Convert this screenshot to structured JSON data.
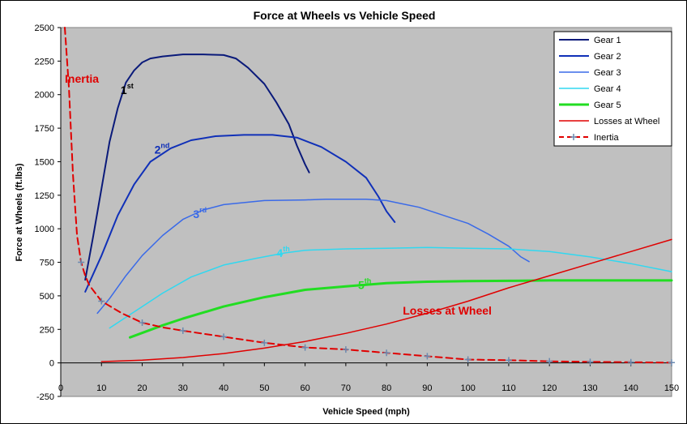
{
  "chart_data": {
    "type": "line",
    "title": "Force at Wheels vs Vehicle Speed",
    "xlabel": "Vehicle Speed (mph)",
    "ylabel": "Force at Wheels (ft.lbs)",
    "xlim": [
      0,
      150
    ],
    "ylim": [
      -250,
      2500
    ],
    "xticks": [
      0,
      10,
      20,
      30,
      40,
      50,
      60,
      70,
      80,
      90,
      100,
      110,
      120,
      130,
      140,
      150
    ],
    "yticks": [
      -250,
      0,
      250,
      500,
      750,
      1000,
      1250,
      1500,
      1750,
      2000,
      2250,
      2500
    ],
    "grid": false,
    "legend_position": "top-right",
    "series": [
      {
        "name": "Gear 1",
        "color": "#0a1a7a",
        "width": 2,
        "dash": "",
        "points": [
          [
            6,
            620
          ],
          [
            8,
            950
          ],
          [
            10,
            1300
          ],
          [
            12,
            1650
          ],
          [
            14,
            1900
          ],
          [
            16,
            2090
          ],
          [
            18,
            2180
          ],
          [
            20,
            2240
          ],
          [
            22,
            2270
          ],
          [
            25,
            2285
          ],
          [
            30,
            2300
          ],
          [
            35,
            2300
          ],
          [
            40,
            2295
          ],
          [
            43,
            2270
          ],
          [
            46,
            2200
          ],
          [
            50,
            2080
          ],
          [
            53,
            1940
          ],
          [
            56,
            1780
          ],
          [
            58,
            1620
          ],
          [
            60,
            1480
          ],
          [
            61,
            1420
          ]
        ]
      },
      {
        "name": "Gear 2",
        "color": "#1030b8",
        "width": 2,
        "dash": "",
        "points": [
          [
            6,
            530
          ],
          [
            10,
            800
          ],
          [
            14,
            1100
          ],
          [
            18,
            1330
          ],
          [
            22,
            1500
          ],
          [
            27,
            1600
          ],
          [
            32,
            1660
          ],
          [
            38,
            1690
          ],
          [
            45,
            1700
          ],
          [
            52,
            1700
          ],
          [
            58,
            1680
          ],
          [
            64,
            1610
          ],
          [
            70,
            1500
          ],
          [
            75,
            1380
          ],
          [
            78,
            1240
          ],
          [
            80,
            1130
          ],
          [
            82,
            1050
          ]
        ]
      },
      {
        "name": "Gear 3",
        "color": "#3a6ae8",
        "width": 1.5,
        "dash": "",
        "points": [
          [
            9,
            370
          ],
          [
            12,
            480
          ],
          [
            16,
            650
          ],
          [
            20,
            800
          ],
          [
            25,
            950
          ],
          [
            30,
            1070
          ],
          [
            35,
            1140
          ],
          [
            40,
            1180
          ],
          [
            50,
            1210
          ],
          [
            60,
            1215
          ],
          [
            65,
            1220
          ],
          [
            75,
            1220
          ],
          [
            80,
            1210
          ],
          [
            88,
            1160
          ],
          [
            95,
            1090
          ],
          [
            100,
            1040
          ],
          [
            105,
            960
          ],
          [
            110,
            870
          ],
          [
            113,
            790
          ],
          [
            115,
            755
          ]
        ]
      },
      {
        "name": "Gear 4",
        "color": "#30d8f0",
        "width": 1.5,
        "dash": "",
        "points": [
          [
            12,
            260
          ],
          [
            18,
            380
          ],
          [
            25,
            520
          ],
          [
            32,
            640
          ],
          [
            40,
            730
          ],
          [
            48,
            780
          ],
          [
            55,
            820
          ],
          [
            60,
            840
          ],
          [
            70,
            850
          ],
          [
            80,
            855
          ],
          [
            90,
            860
          ],
          [
            100,
            855
          ],
          [
            110,
            850
          ],
          [
            120,
            830
          ],
          [
            130,
            790
          ],
          [
            140,
            740
          ],
          [
            150,
            680
          ]
        ]
      },
      {
        "name": "Gear 5",
        "color": "#22dd22",
        "width": 3,
        "dash": "",
        "points": [
          [
            17,
            190
          ],
          [
            25,
            280
          ],
          [
            30,
            330
          ],
          [
            40,
            420
          ],
          [
            50,
            490
          ],
          [
            60,
            545
          ],
          [
            70,
            570
          ],
          [
            80,
            595
          ],
          [
            90,
            605
          ],
          [
            100,
            610
          ],
          [
            110,
            612
          ],
          [
            120,
            615
          ],
          [
            130,
            615
          ],
          [
            140,
            615
          ],
          [
            150,
            615
          ]
        ]
      },
      {
        "name": "Losses at Wheel",
        "color": "#e00000",
        "width": 1.5,
        "dash": "",
        "points": [
          [
            10,
            10
          ],
          [
            20,
            20
          ],
          [
            30,
            40
          ],
          [
            40,
            70
          ],
          [
            50,
            110
          ],
          [
            60,
            160
          ],
          [
            70,
            220
          ],
          [
            80,
            290
          ],
          [
            90,
            370
          ],
          [
            100,
            460
          ],
          [
            110,
            560
          ],
          [
            120,
            650
          ],
          [
            130,
            740
          ],
          [
            140,
            830
          ],
          [
            150,
            920
          ]
        ]
      },
      {
        "name": "Inertia",
        "color": "#e00000",
        "width": 2,
        "dash": "8,5",
        "markers": "plus",
        "points": [
          [
            1,
            2500
          ],
          [
            2,
            2050
          ],
          [
            3,
            1400
          ],
          [
            4,
            950
          ],
          [
            5,
            750
          ],
          [
            6,
            650
          ],
          [
            7,
            580
          ],
          [
            8,
            540
          ],
          [
            10,
            460
          ],
          [
            15,
            370
          ],
          [
            20,
            300
          ],
          [
            25,
            265
          ],
          [
            30,
            240
          ],
          [
            40,
            195
          ],
          [
            50,
            150
          ],
          [
            60,
            115
          ],
          [
            70,
            100
          ],
          [
            80,
            75
          ],
          [
            90,
            50
          ],
          [
            100,
            25
          ],
          [
            110,
            20
          ],
          [
            120,
            12
          ],
          [
            130,
            8
          ],
          [
            140,
            5
          ],
          [
            150,
            2
          ]
        ],
        "marker_x": [
          5,
          10,
          20,
          30,
          40,
          50,
          60,
          70,
          80,
          90,
          100,
          110,
          120,
          130,
          140,
          150
        ]
      }
    ],
    "annotations": [
      {
        "main": "1",
        "sup": "st",
        "color": "#000000",
        "x": 14.7,
        "y": 2005
      },
      {
        "main": "2",
        "sup": "nd",
        "color": "#1030b8",
        "x": 23,
        "y": 1560
      },
      {
        "main": "3",
        "sup": "rd",
        "color": "#3a6ae8",
        "x": 32.5,
        "y": 1080
      },
      {
        "main": "4",
        "sup": "th",
        "color": "#30d8f0",
        "x": 53,
        "y": 790
      },
      {
        "main": "5",
        "sup": "th",
        "color": "#22dd22",
        "x": 73,
        "y": 550
      },
      {
        "main": "Losses at Wheel",
        "sup": "",
        "color": "#e00000",
        "x": 84,
        "y": 360,
        "small": true
      },
      {
        "main": "Inertia",
        "sup": "",
        "color": "#e00000",
        "x": 1,
        "y": 2090,
        "small": true
      }
    ]
  }
}
